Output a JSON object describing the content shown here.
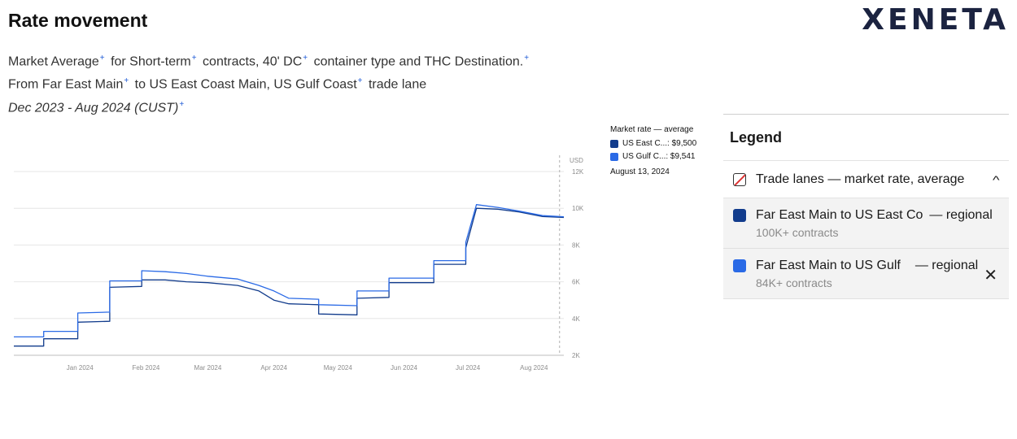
{
  "header": {
    "title": "Rate movement",
    "logo_text": "XENETA"
  },
  "description": {
    "line1": [
      {
        "text": "Market Average",
        "sup": "+"
      },
      {
        "text": "for Short-term",
        "sup": "+"
      },
      {
        "text": "contracts, 40' DC",
        "sup": "+"
      },
      {
        "text": "container type and THC Destination.",
        "sup": "+"
      }
    ],
    "line2": [
      {
        "text": "From Far East Main",
        "sup": "+"
      },
      {
        "text": "to US East Coast Main, US Gulf Coast",
        "sup": "+"
      },
      {
        "text": "trade lane",
        "sup": ""
      }
    ],
    "line3": [
      {
        "text": "Dec 2023 - Aug 2024 (CUST)",
        "sup": "+"
      }
    ]
  },
  "tooltip": {
    "title": "Market rate — average",
    "rows": [
      {
        "label": "US East C...: $9,500",
        "color": "#123c8c"
      },
      {
        "label": "US Gulf C...: $9,541",
        "color": "#2a6ae6"
      }
    ],
    "date": "August 13, 2024"
  },
  "legend": {
    "title": "Legend",
    "group_label": "Trade lanes — market rate, average",
    "group_chevron": "^",
    "items": [
      {
        "name": "Far East Main to US East Co",
        "suffix": "— regional",
        "sub": "100K+ contracts",
        "color": "#123c8c",
        "close": ""
      },
      {
        "name": "Far East Main to US Gulf",
        "suffix": "— regional",
        "sub": "84K+ contracts",
        "color": "#2a6ae6",
        "close": "✕"
      }
    ]
  },
  "chart_data": {
    "type": "line",
    "unit_label": "USD",
    "x_range": [
      "2023-12-01",
      "2024-08-15"
    ],
    "ylim": [
      2000,
      12000
    ],
    "y_ticks": [
      2000,
      4000,
      6000,
      8000,
      10000,
      12000
    ],
    "y_tick_labels": [
      "2K",
      "4K",
      "6K",
      "8K",
      "10K",
      "12K"
    ],
    "x_ticks": [
      {
        "date": "2024-01-01",
        "label": "Jan 2024"
      },
      {
        "date": "2024-02-01",
        "label": "Feb 2024"
      },
      {
        "date": "2024-03-01",
        "label": "Mar 2024"
      },
      {
        "date": "2024-04-01",
        "label": "Apr 2024"
      },
      {
        "date": "2024-05-01",
        "label": "May 2024"
      },
      {
        "date": "2024-06-01",
        "label": "Jun 2024"
      },
      {
        "date": "2024-07-01",
        "label": "Jul 2024"
      },
      {
        "date": "2024-08-01",
        "label": "Aug 2024"
      }
    ],
    "grid": true,
    "series": [
      {
        "name": "US East C...",
        "color": "#123c8c",
        "points": [
          [
            "2023-12-01",
            2500
          ],
          [
            "2023-12-15",
            2500
          ],
          [
            "2023-12-15",
            2900
          ],
          [
            "2023-12-31",
            2900
          ],
          [
            "2023-12-31",
            3800
          ],
          [
            "2024-01-15",
            3850
          ],
          [
            "2024-01-15",
            5700
          ],
          [
            "2024-01-30",
            5750
          ],
          [
            "2024-01-30",
            6100
          ],
          [
            "2024-02-10",
            6100
          ],
          [
            "2024-02-20",
            6000
          ],
          [
            "2024-03-01",
            5950
          ],
          [
            "2024-03-15",
            5800
          ],
          [
            "2024-03-25",
            5500
          ],
          [
            "2024-04-01",
            5000
          ],
          [
            "2024-04-08",
            4800
          ],
          [
            "2024-04-22",
            4750
          ],
          [
            "2024-04-22",
            4250
          ],
          [
            "2024-05-10",
            4200
          ],
          [
            "2024-05-10",
            5100
          ],
          [
            "2024-05-25",
            5150
          ],
          [
            "2024-05-25",
            5950
          ],
          [
            "2024-06-15",
            5950
          ],
          [
            "2024-06-15",
            6950
          ],
          [
            "2024-06-30",
            6950
          ],
          [
            "2024-06-30",
            7850
          ],
          [
            "2024-07-05",
            10000
          ],
          [
            "2024-07-15",
            9950
          ],
          [
            "2024-07-25",
            9800
          ],
          [
            "2024-08-05",
            9550
          ],
          [
            "2024-08-15",
            9500
          ]
        ]
      },
      {
        "name": "US Gulf C...",
        "color": "#2a6ae6",
        "points": [
          [
            "2023-12-01",
            3000
          ],
          [
            "2023-12-15",
            3000
          ],
          [
            "2023-12-15",
            3300
          ],
          [
            "2023-12-31",
            3300
          ],
          [
            "2023-12-31",
            4300
          ],
          [
            "2024-01-15",
            4350
          ],
          [
            "2024-01-15",
            6050
          ],
          [
            "2024-01-30",
            6050
          ],
          [
            "2024-01-30",
            6600
          ],
          [
            "2024-02-10",
            6550
          ],
          [
            "2024-02-20",
            6450
          ],
          [
            "2024-03-01",
            6300
          ],
          [
            "2024-03-15",
            6150
          ],
          [
            "2024-03-25",
            5800
          ],
          [
            "2024-04-01",
            5500
          ],
          [
            "2024-04-08",
            5100
          ],
          [
            "2024-04-22",
            5050
          ],
          [
            "2024-04-22",
            4750
          ],
          [
            "2024-05-10",
            4700
          ],
          [
            "2024-05-10",
            5500
          ],
          [
            "2024-05-25",
            5500
          ],
          [
            "2024-05-25",
            6200
          ],
          [
            "2024-06-15",
            6200
          ],
          [
            "2024-06-15",
            7150
          ],
          [
            "2024-06-30",
            7150
          ],
          [
            "2024-06-30",
            8150
          ],
          [
            "2024-07-05",
            10200
          ],
          [
            "2024-07-15",
            10050
          ],
          [
            "2024-07-25",
            9850
          ],
          [
            "2024-08-05",
            9600
          ],
          [
            "2024-08-15",
            9541
          ]
        ]
      }
    ],
    "hover_date": "2024-08-13"
  }
}
